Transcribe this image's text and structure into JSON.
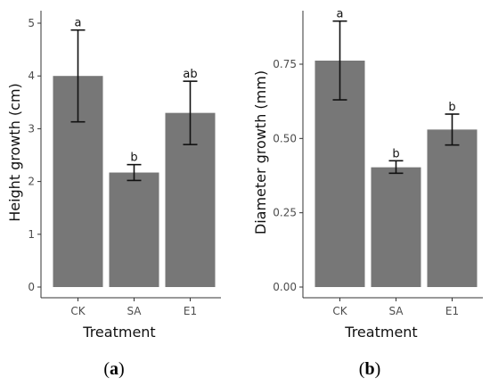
{
  "chart_data": [
    {
      "type": "bar",
      "panel_label": "(a)",
      "panel_letter": "a",
      "categories": [
        "CK",
        "SA",
        "E1"
      ],
      "values": [
        4.0,
        2.17,
        3.3
      ],
      "error_low": [
        3.13,
        2.02,
        2.7
      ],
      "error_high": [
        4.87,
        2.32,
        3.9
      ],
      "significance": [
        "a",
        "b",
        "ab"
      ],
      "xlabel": "Treatment",
      "ylabel": "Height growth (cm)",
      "ylim": [
        0,
        5
      ],
      "yticks": [
        0,
        1,
        2,
        3,
        4,
        5
      ],
      "ytick_labels": [
        "0",
        "1",
        "2",
        "3",
        "4",
        "5"
      ],
      "bar_color": "#777777",
      "grid": false
    },
    {
      "type": "bar",
      "panel_label": "(b)",
      "panel_letter": "b",
      "categories": [
        "CK",
        "SA",
        "E1"
      ],
      "values": [
        0.762,
        0.403,
        0.53
      ],
      "error_low": [
        0.63,
        0.383,
        0.478
      ],
      "error_high": [
        0.895,
        0.425,
        0.582
      ],
      "significance": [
        "a",
        "b",
        "b"
      ],
      "xlabel": "Treatment",
      "ylabel": "Diameter growth (mm)",
      "ylim": [
        0,
        0.9
      ],
      "yticks": [
        0,
        0.25,
        0.5,
        0.75
      ],
      "ytick_labels": [
        "0.00",
        "0.25",
        "0.50",
        "0.75"
      ],
      "bar_color": "#777777",
      "grid": false
    }
  ]
}
